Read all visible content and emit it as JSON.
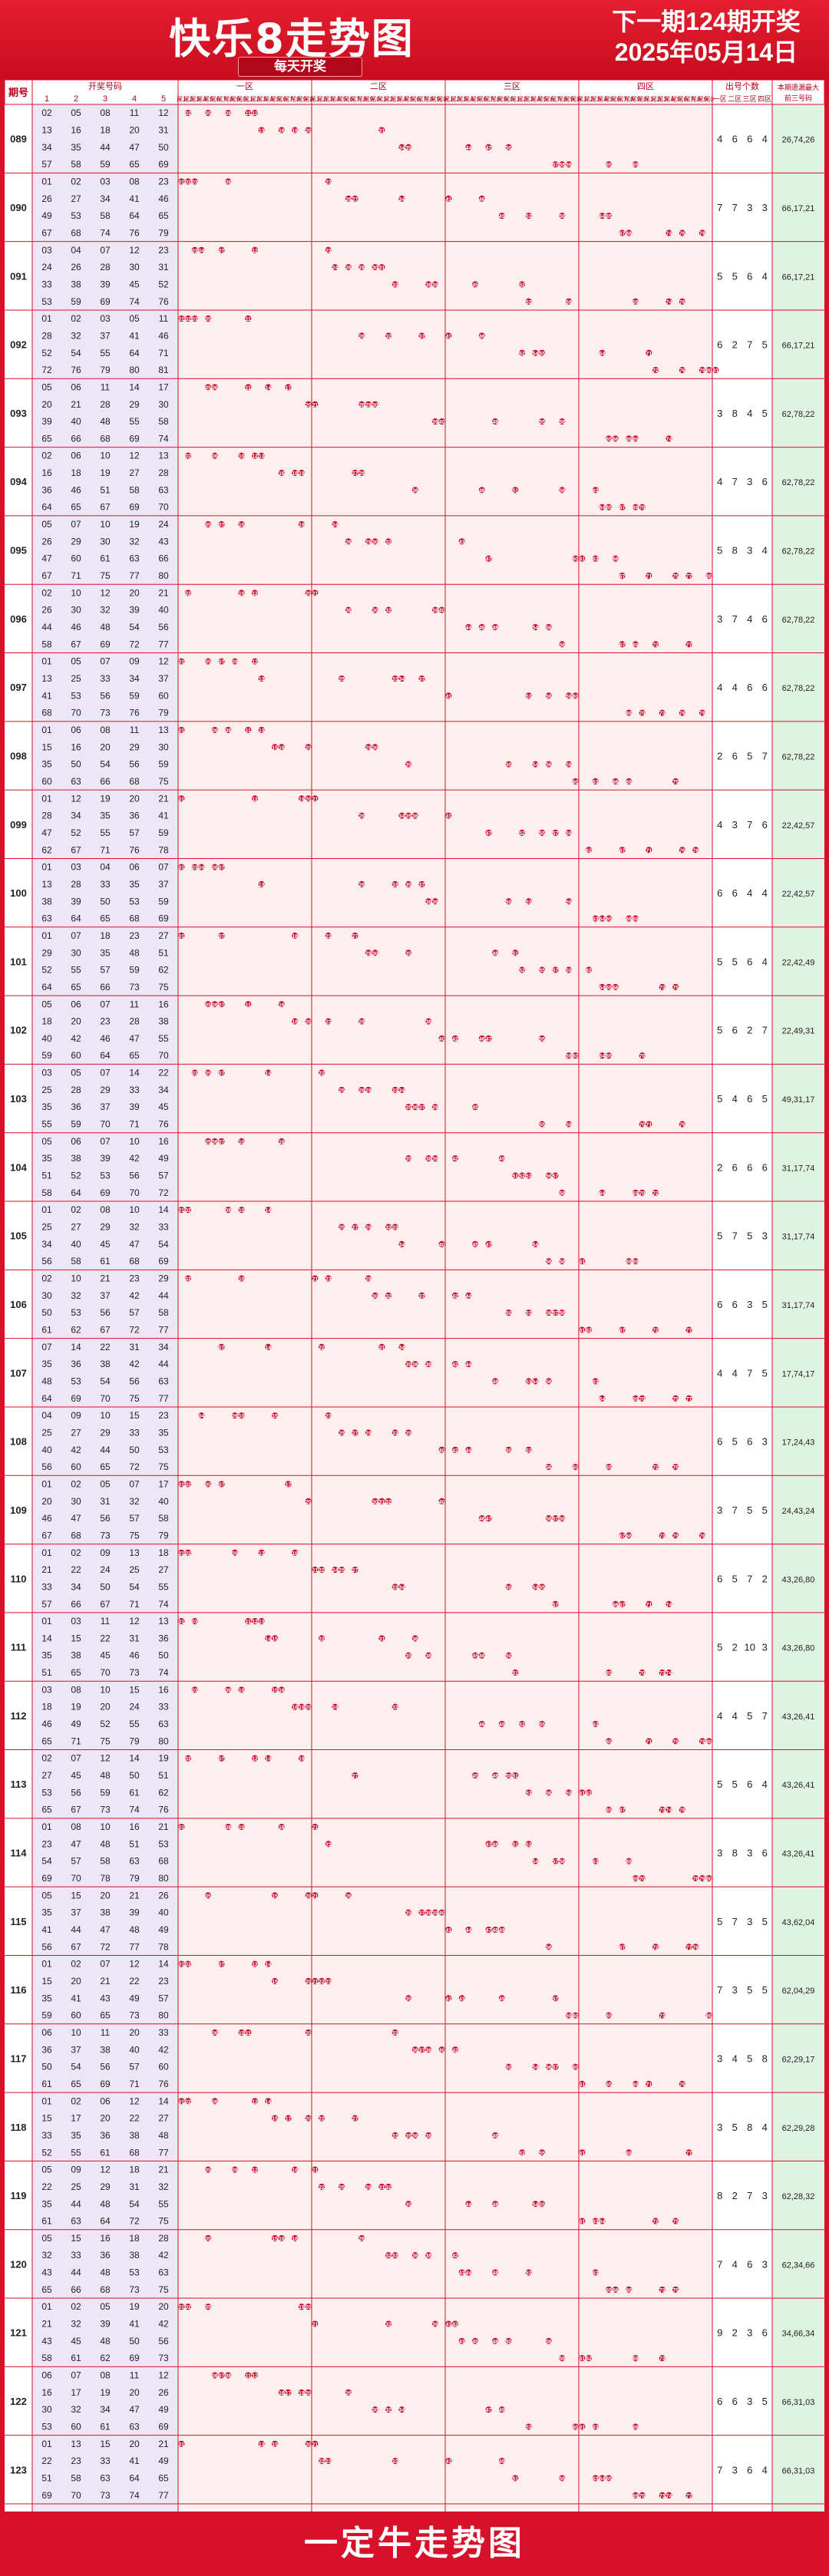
{
  "header": {
    "title": "快乐8走势图",
    "subtitle": "每天开奖",
    "next_draw": "下一期124期开奖",
    "next_date": "2025年05月14日"
  },
  "footer": {
    "text": "一定牛走势图"
  },
  "columns": {
    "period": "期号",
    "draw_numbers": "开奖号码",
    "draw_cols": [
      "1",
      "2",
      "3",
      "4",
      "5"
    ],
    "zones": [
      "一区",
      "二区",
      "三区",
      "四区"
    ],
    "tail_labels": [
      "尾1",
      "尾2",
      "尾3",
      "尾4",
      "尾5",
      "尾6",
      "尾7",
      "尾8",
      "尾9",
      "尾0"
    ],
    "count_group": "出号个数",
    "count_cols": [
      "一区",
      "二区",
      "三区",
      "四区"
    ],
    "missing": "本期遗漏最大前三号码"
  },
  "colors": {
    "brand": "#d8112a",
    "ball": "#c8102e",
    "zone_bg": "#fdeef0",
    "draw_bg": "#ece6f6",
    "missing_bg": "#dff3e3"
  },
  "chart_data": {
    "type": "table",
    "rows": [
      {
        "period": "089",
        "numbers": [
          2,
          5,
          8,
          11,
          12,
          13,
          16,
          18,
          20,
          31,
          34,
          35,
          44,
          47,
          50,
          57,
          58,
          59,
          65,
          69
        ],
        "counts": [
          4,
          6,
          6,
          4
        ],
        "missing": "26,74,26"
      },
      {
        "period": "090",
        "numbers": [
          1,
          2,
          3,
          8,
          23,
          26,
          27,
          34,
          41,
          46,
          49,
          53,
          58,
          64,
          65,
          67,
          68,
          74,
          76,
          79
        ],
        "counts": [
          7,
          7,
          3,
          3
        ],
        "missing": "66,17,21"
      },
      {
        "period": "091",
        "numbers": [
          3,
          4,
          7,
          12,
          23,
          24,
          26,
          28,
          30,
          31,
          33,
          38,
          39,
          45,
          52,
          53,
          59,
          69,
          74,
          76
        ],
        "counts": [
          5,
          5,
          6,
          4
        ],
        "missing": "66,17,21"
      },
      {
        "period": "092",
        "numbers": [
          1,
          2,
          3,
          5,
          11,
          28,
          32,
          37,
          41,
          46,
          52,
          54,
          55,
          64,
          71,
          72,
          76,
          79,
          80,
          81
        ],
        "counts": [
          6,
          2,
          7,
          5
        ],
        "missing": "66,17,21"
      },
      {
        "period": "093",
        "numbers": [
          5,
          6,
          11,
          14,
          17,
          20,
          21,
          28,
          29,
          30,
          39,
          40,
          48,
          55,
          58,
          65,
          66,
          68,
          69,
          74
        ],
        "counts": [
          3,
          8,
          4,
          5
        ],
        "missing": "62,78,22"
      },
      {
        "period": "094",
        "numbers": [
          2,
          6,
          10,
          12,
          13,
          16,
          18,
          19,
          27,
          28,
          36,
          46,
          51,
          58,
          63,
          64,
          65,
          67,
          69,
          70
        ],
        "counts": [
          4,
          7,
          3,
          6
        ],
        "missing": "62,78,22"
      },
      {
        "period": "095",
        "numbers": [
          5,
          7,
          10,
          19,
          24,
          26,
          29,
          30,
          32,
          43,
          47,
          60,
          61,
          63,
          66,
          67,
          71,
          75,
          77,
          80
        ],
        "counts": [
          5,
          8,
          3,
          4
        ],
        "missing": "62,78,22"
      },
      {
        "period": "096",
        "numbers": [
          2,
          10,
          12,
          20,
          21,
          26,
          30,
          32,
          39,
          40,
          44,
          46,
          48,
          54,
          56,
          58,
          67,
          69,
          72,
          77
        ],
        "counts": [
          3,
          7,
          4,
          6
        ],
        "missing": "62,78,22"
      },
      {
        "period": "097",
        "numbers": [
          1,
          5,
          7,
          9,
          12,
          13,
          25,
          33,
          34,
          37,
          41,
          53,
          56,
          59,
          60,
          68,
          70,
          73,
          76,
          79
        ],
        "counts": [
          4,
          4,
          6,
          6
        ],
        "missing": "62,78,22"
      },
      {
        "period": "098",
        "numbers": [
          1,
          6,
          8,
          11,
          13,
          15,
          16,
          20,
          29,
          30,
          35,
          50,
          54,
          56,
          59,
          60,
          63,
          66,
          68,
          75
        ],
        "counts": [
          2,
          6,
          5,
          7
        ],
        "missing": "62,78,22"
      },
      {
        "period": "099",
        "numbers": [
          1,
          12,
          19,
          20,
          21,
          28,
          34,
          35,
          36,
          41,
          47,
          52,
          55,
          57,
          59,
          62,
          67,
          71,
          76,
          78
        ],
        "counts": [
          4,
          3,
          7,
          6
        ],
        "missing": "22,42,57"
      },
      {
        "period": "100",
        "numbers": [
          1,
          3,
          4,
          6,
          7,
          13,
          28,
          33,
          35,
          37,
          38,
          39,
          50,
          53,
          59,
          63,
          64,
          65,
          68,
          69
        ],
        "counts": [
          6,
          6,
          4,
          4
        ],
        "missing": "22,42,57"
      },
      {
        "period": "101",
        "numbers": [
          1,
          7,
          18,
          23,
          27,
          29,
          30,
          35,
          48,
          51,
          52,
          55,
          57,
          59,
          62,
          64,
          65,
          66,
          73,
          75
        ],
        "counts": [
          5,
          5,
          6,
          4
        ],
        "missing": "22,42,49"
      },
      {
        "period": "102",
        "numbers": [
          5,
          6,
          7,
          11,
          16,
          18,
          20,
          23,
          28,
          38,
          40,
          42,
          46,
          47,
          55,
          59,
          60,
          64,
          65,
          70
        ],
        "counts": [
          5,
          6,
          2,
          7
        ],
        "missing": "22,49,31"
      },
      {
        "period": "103",
        "numbers": [
          3,
          5,
          7,
          14,
          22,
          25,
          28,
          29,
          33,
          34,
          35,
          36,
          37,
          39,
          45,
          55,
          59,
          70,
          71,
          76
        ],
        "counts": [
          5,
          4,
          6,
          5
        ],
        "missing": "49,31,17"
      },
      {
        "period": "104",
        "numbers": [
          5,
          6,
          7,
          10,
          16,
          35,
          38,
          39,
          42,
          49,
          51,
          52,
          53,
          56,
          57,
          58,
          64,
          69,
          70,
          72
        ],
        "counts": [
          2,
          6,
          6,
          6
        ],
        "missing": "31,17,74"
      },
      {
        "period": "105",
        "numbers": [
          1,
          2,
          8,
          10,
          14,
          25,
          27,
          29,
          32,
          33,
          34,
          40,
          45,
          47,
          54,
          56,
          58,
          61,
          68,
          69
        ],
        "counts": [
          5,
          7,
          5,
          3
        ],
        "missing": "31,17,74"
      },
      {
        "period": "106",
        "numbers": [
          2,
          10,
          21,
          23,
          29,
          30,
          32,
          37,
          42,
          44,
          50,
          53,
          56,
          57,
          58,
          61,
          62,
          67,
          72,
          77
        ],
        "counts": [
          6,
          6,
          3,
          5
        ],
        "missing": "31,17,74"
      },
      {
        "period": "107",
        "numbers": [
          7,
          14,
          22,
          31,
          34,
          35,
          36,
          38,
          42,
          44,
          48,
          53,
          54,
          56,
          63,
          64,
          69,
          70,
          75,
          77
        ],
        "counts": [
          4,
          4,
          7,
          5
        ],
        "missing": "17,74,17"
      },
      {
        "period": "108",
        "numbers": [
          4,
          9,
          10,
          15,
          23,
          25,
          27,
          29,
          33,
          35,
          40,
          42,
          44,
          50,
          53,
          56,
          60,
          65,
          72,
          75
        ],
        "counts": [
          6,
          5,
          6,
          3
        ],
        "missing": "17,24,43"
      },
      {
        "period": "109",
        "numbers": [
          1,
          2,
          5,
          7,
          17,
          20,
          30,
          31,
          32,
          40,
          46,
          47,
          56,
          57,
          58,
          67,
          68,
          73,
          75,
          79
        ],
        "counts": [
          3,
          7,
          5,
          5
        ],
        "missing": "24,43,24"
      },
      {
        "period": "110",
        "numbers": [
          1,
          2,
          9,
          13,
          18,
          21,
          22,
          24,
          25,
          27,
          33,
          34,
          50,
          54,
          55,
          57,
          66,
          67,
          71,
          74
        ],
        "counts": [
          6,
          5,
          7,
          2
        ],
        "missing": "43,26,80"
      },
      {
        "period": "111",
        "numbers": [
          1,
          3,
          11,
          12,
          13,
          14,
          15,
          22,
          31,
          36,
          35,
          38,
          45,
          46,
          50,
          51,
          65,
          70,
          73,
          74
        ],
        "counts": [
          5,
          2,
          10,
          3
        ],
        "missing": "43,26,80"
      },
      {
        "period": "112",
        "numbers": [
          3,
          8,
          10,
          15,
          16,
          18,
          19,
          20,
          24,
          33,
          46,
          49,
          52,
          55,
          63,
          65,
          71,
          75,
          79,
          80
        ],
        "counts": [
          4,
          4,
          5,
          7
        ],
        "missing": "43,26,41"
      },
      {
        "period": "113",
        "numbers": [
          2,
          7,
          12,
          14,
          19,
          27,
          45,
          48,
          50,
          51,
          53,
          56,
          59,
          61,
          62,
          65,
          67,
          73,
          74,
          76
        ],
        "counts": [
          5,
          5,
          6,
          4
        ],
        "missing": "43,26,41"
      },
      {
        "period": "114",
        "numbers": [
          1,
          8,
          10,
          16,
          21,
          23,
          47,
          48,
          51,
          53,
          54,
          57,
          58,
          63,
          68,
          69,
          70,
          78,
          79,
          80
        ],
        "counts": [
          3,
          8,
          3,
          6
        ],
        "missing": "43,26,41"
      },
      {
        "period": "115",
        "numbers": [
          5,
          15,
          20,
          21,
          26,
          35,
          37,
          38,
          39,
          40,
          41,
          44,
          47,
          48,
          49,
          56,
          67,
          72,
          77,
          78
        ],
        "counts": [
          5,
          7,
          3,
          5
        ],
        "missing": "43,62,04"
      },
      {
        "period": "116",
        "numbers": [
          1,
          2,
          7,
          12,
          14,
          15,
          20,
          21,
          22,
          23,
          35,
          41,
          43,
          49,
          57,
          59,
          60,
          65,
          73,
          80
        ],
        "counts": [
          7,
          3,
          5,
          5
        ],
        "missing": "62,04,29"
      },
      {
        "period": "117",
        "numbers": [
          6,
          10,
          11,
          20,
          33,
          36,
          37,
          38,
          40,
          42,
          50,
          54,
          56,
          57,
          60,
          61,
          65,
          69,
          71,
          76
        ],
        "counts": [
          3,
          4,
          5,
          8
        ],
        "missing": "62,29,17"
      },
      {
        "period": "118",
        "numbers": [
          1,
          2,
          6,
          12,
          14,
          15,
          17,
          20,
          22,
          27,
          33,
          35,
          36,
          38,
          48,
          52,
          55,
          61,
          68,
          77
        ],
        "counts": [
          3,
          5,
          8,
          4
        ],
        "missing": "62,29,28"
      },
      {
        "period": "119",
        "numbers": [
          5,
          9,
          12,
          18,
          21,
          22,
          25,
          29,
          31,
          32,
          35,
          44,
          48,
          54,
          55,
          61,
          63,
          64,
          72,
          75
        ],
        "counts": [
          8,
          2,
          7,
          3
        ],
        "missing": "62,28,32"
      },
      {
        "period": "120",
        "numbers": [
          5,
          15,
          16,
          18,
          28,
          32,
          33,
          36,
          38,
          42,
          43,
          44,
          48,
          53,
          63,
          65,
          66,
          68,
          73,
          75
        ],
        "counts": [
          7,
          4,
          6,
          3
        ],
        "missing": "62,34,66"
      },
      {
        "period": "121",
        "numbers": [
          1,
          2,
          5,
          19,
          20,
          21,
          32,
          39,
          41,
          42,
          43,
          45,
          48,
          50,
          56,
          58,
          61,
          62,
          69,
          73
        ],
        "counts": [
          9,
          2,
          3,
          6
        ],
        "missing": "34,66,34"
      },
      {
        "period": "122",
        "numbers": [
          6,
          7,
          8,
          11,
          12,
          16,
          17,
          19,
          20,
          26,
          30,
          32,
          34,
          47,
          49,
          53,
          60,
          61,
          63,
          69
        ],
        "counts": [
          6,
          6,
          3,
          5
        ],
        "missing": "66,31,03"
      },
      {
        "period": "123",
        "numbers": [
          1,
          13,
          15,
          20,
          21,
          22,
          23,
          33,
          41,
          49,
          51,
          58,
          63,
          64,
          65,
          69,
          70,
          73,
          74,
          77
        ],
        "counts": [
          7,
          3,
          6,
          4
        ],
        "missing": "66,31,03"
      }
    ]
  }
}
